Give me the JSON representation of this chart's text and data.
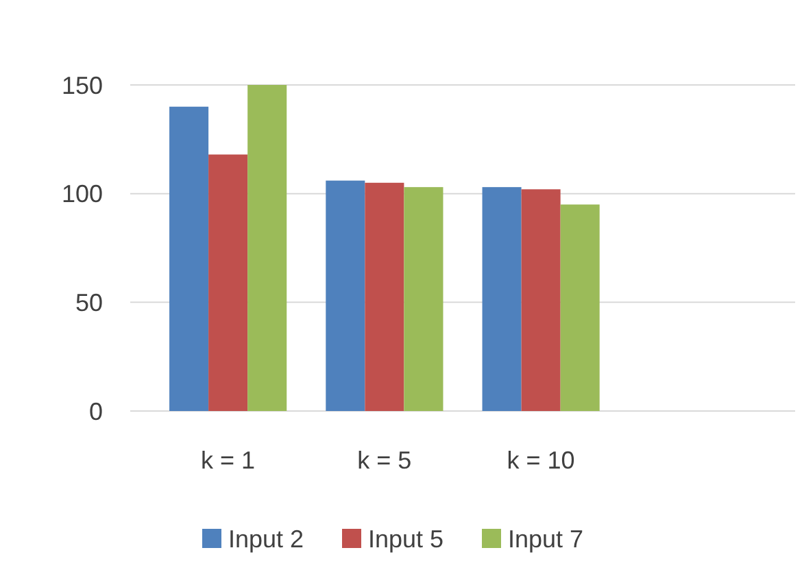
{
  "chart_data": {
    "type": "bar",
    "categories": [
      "k = 1",
      "k = 5",
      "k = 10",
      null
    ],
    "series": [
      {
        "name": "Input 2",
        "color": "#4f81bd",
        "values": [
          140,
          106,
          103,
          null
        ]
      },
      {
        "name": "Input 5",
        "color": "#c0504d",
        "values": [
          118,
          105,
          102,
          null
        ]
      },
      {
        "name": "Input 7",
        "color": "#9bbb59",
        "values": [
          150,
          103,
          95,
          null
        ]
      }
    ],
    "ylim": [
      0,
      150
    ],
    "yticks": [
      0,
      50,
      100,
      150
    ],
    "grid": "y",
    "legend": "bottom"
  }
}
